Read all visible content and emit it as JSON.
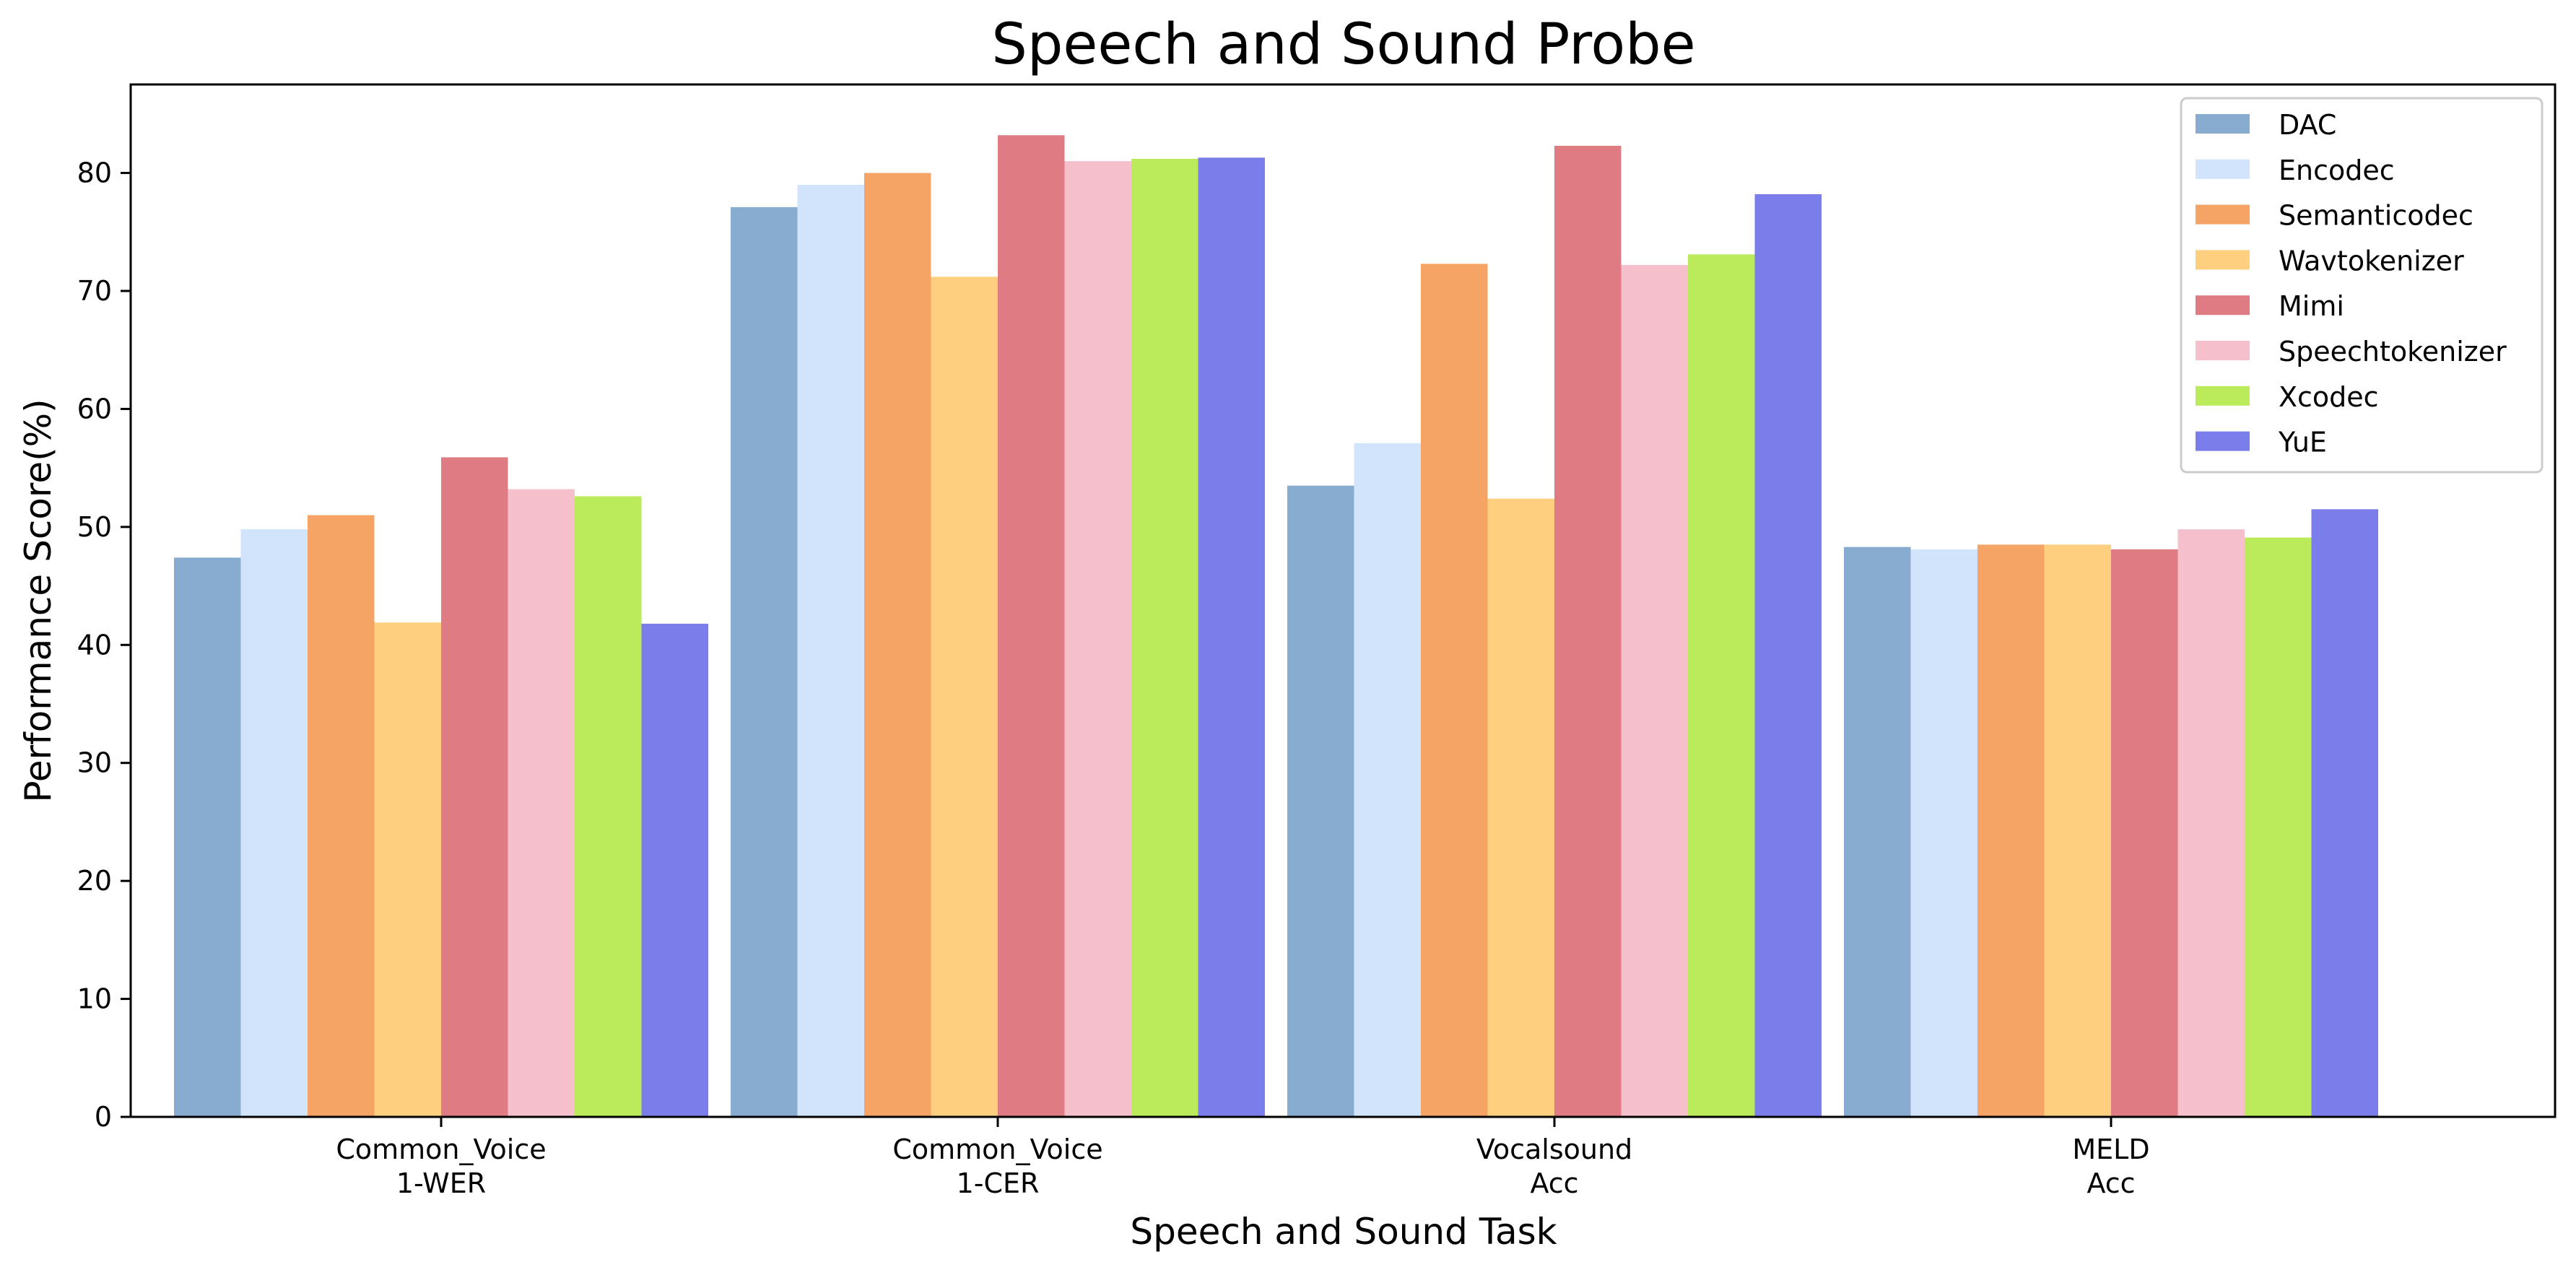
{
  "chart_data": {
    "type": "bar",
    "title": "Speech and Sound Probe",
    "xlabel": "Speech and Sound Task",
    "ylabel": "Performance Score(%)",
    "ylim": [
      0,
      87.5
    ],
    "yticks": [
      0,
      10,
      20,
      30,
      40,
      50,
      60,
      70,
      80
    ],
    "grid": false,
    "legend_position": "top-right",
    "categories": [
      [
        "Common_Voice",
        "1-WER"
      ],
      [
        "Common_Voice",
        "1-CER"
      ],
      [
        "Vocalsound",
        "Acc"
      ],
      [
        "MELD",
        "Acc"
      ]
    ],
    "series": [
      {
        "name": "DAC",
        "color": "#88abd0",
        "values": [
          47.4,
          77.1,
          53.5,
          48.3
        ]
      },
      {
        "name": "Encodec",
        "color": "#d1e4fc",
        "values": [
          49.8,
          79.0,
          57.1,
          48.1
        ]
      },
      {
        "name": "Semanticodec",
        "color": "#f5a465",
        "values": [
          51.0,
          80.0,
          72.3,
          48.5
        ]
      },
      {
        "name": "Wavtokenizer",
        "color": "#fdcf7f",
        "values": [
          41.9,
          71.2,
          52.4,
          48.5
        ]
      },
      {
        "name": "Mimi",
        "color": "#df7c83",
        "values": [
          55.9,
          83.2,
          82.3,
          48.1
        ]
      },
      {
        "name": "Speechtokenizer",
        "color": "#f5c0cc",
        "values": [
          53.2,
          81.0,
          72.2,
          49.8
        ]
      },
      {
        "name": "Xcodec",
        "color": "#bbea5a",
        "values": [
          52.6,
          81.2,
          73.1,
          49.1
        ]
      },
      {
        "name": "YuE",
        "color": "#7b7deb",
        "values": [
          41.8,
          81.3,
          78.2,
          51.5
        ]
      }
    ]
  }
}
